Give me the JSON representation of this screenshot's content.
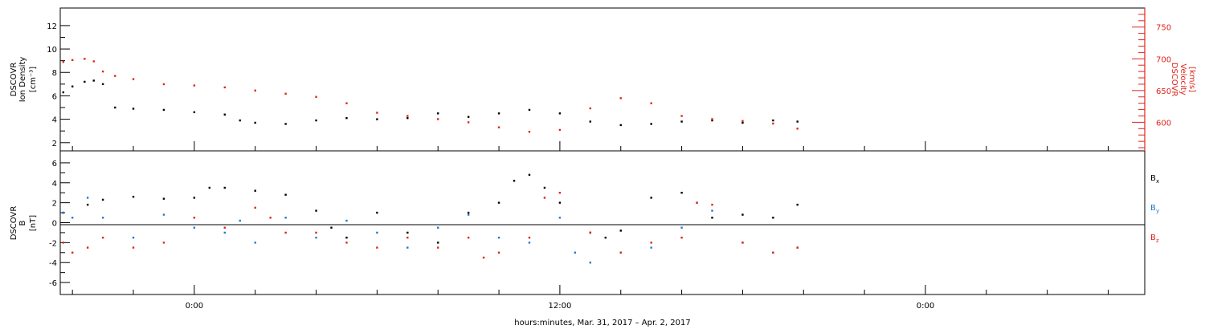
{
  "chart_data": [
    {
      "type": "scatter",
      "panel": "plasma",
      "ylabel_left": [
        "DSCOVR",
        "Ion Density",
        "[cm⁻³]"
      ],
      "ylabel_right": [
        "DSCOVR",
        "Velocity",
        "[km/s]"
      ],
      "ylim_left": [
        1.3,
        13.5
      ],
      "yticks_left": [
        2,
        4,
        6,
        8,
        10,
        12
      ],
      "ylim_right": [
        555,
        780
      ],
      "yticks_right": [
        600,
        650,
        700,
        750
      ],
      "series": [
        {
          "color": "#000000",
          "axis": "left",
          "x": [
            -4.3,
            -4.0,
            -3.6,
            -3.3,
            -3.0,
            -2.6,
            -2.0,
            -1.0,
            0.0,
            1.0,
            1.5,
            2.0,
            3.0,
            4.0,
            5.0,
            6.0,
            7.0,
            8.0,
            9.0,
            10.0,
            11.0,
            12.0,
            13.0,
            14.0,
            15.0,
            16.0,
            17.0,
            18.0,
            19.0,
            19.8
          ],
          "y": [
            6.3,
            6.8,
            7.2,
            7.3,
            7.0,
            5.0,
            4.9,
            4.8,
            4.6,
            4.4,
            3.9,
            3.7,
            3.6,
            3.9,
            4.1,
            4.0,
            4.1,
            4.5,
            4.2,
            4.5,
            4.8,
            4.5,
            3.8,
            3.5,
            3.6,
            3.8,
            3.9,
            3.7,
            3.9,
            3.8
          ]
        },
        {
          "color": "#e0241c",
          "axis": "right",
          "x": [
            -4.3,
            -4.0,
            -3.6,
            -3.3,
            -3.0,
            -2.6,
            -2.0,
            -1.0,
            0.0,
            1.0,
            2.0,
            3.0,
            4.0,
            5.0,
            6.0,
            7.0,
            8.0,
            9.0,
            10.0,
            11.0,
            12.0,
            13.0,
            14.0,
            15.0,
            16.0,
            17.0,
            18.0,
            19.0,
            19.8
          ],
          "y": [
            695,
            698,
            700,
            696,
            680,
            673,
            668,
            660,
            658,
            655,
            650,
            645,
            640,
            630,
            615,
            610,
            605,
            600,
            592,
            585,
            588,
            622,
            638,
            630,
            610,
            605,
            602,
            598,
            590
          ]
        }
      ]
    },
    {
      "type": "scatter",
      "panel": "magnetic",
      "ylabel": [
        "DSCOVR",
        "B",
        "[nT]"
      ],
      "ylim": [
        -7.2,
        7.2
      ],
      "yticks": [
        -6,
        -4,
        -2,
        0,
        2,
        4,
        6
      ],
      "zero_line": true,
      "legend": {
        "placement": "right",
        "entries": [
          {
            "label": "B",
            "sub": "x",
            "color": "#000000"
          },
          {
            "label": "B",
            "sub": "y",
            "color": "#1c7bd6"
          },
          {
            "label": "B",
            "sub": "z",
            "color": "#e0241c"
          }
        ]
      },
      "series": [
        {
          "sub": "x",
          "color": "#000000",
          "x": [
            -4.3,
            -3.5,
            -3.0,
            -2.0,
            -1.0,
            0.0,
            0.5,
            1.0,
            2.0,
            3.0,
            4.0,
            4.5,
            5.0,
            6.0,
            7.0,
            8.0,
            9.0,
            10.0,
            10.5,
            11.0,
            11.5,
            12.0,
            13.0,
            13.5,
            14.0,
            15.0,
            16.0,
            17.0,
            18.0,
            19.0,
            19.8
          ],
          "y": [
            1.0,
            1.8,
            2.3,
            2.6,
            2.4,
            2.5,
            3.5,
            3.5,
            3.2,
            2.8,
            1.2,
            -0.5,
            -1.5,
            1.0,
            -1.0,
            -2.0,
            1.0,
            2.0,
            4.2,
            4.8,
            3.5,
            2.0,
            -1.0,
            -1.5,
            -0.8,
            2.5,
            3.0,
            0.5,
            0.8,
            0.5,
            1.8
          ]
        },
        {
          "sub": "y",
          "color": "#1c7bd6",
          "x": [
            -4.3,
            -4.0,
            -3.5,
            -3.0,
            -2.0,
            -1.0,
            0.0,
            1.0,
            1.5,
            2.0,
            3.0,
            4.0,
            5.0,
            6.0,
            7.0,
            8.0,
            9.0,
            10.0,
            11.0,
            12.0,
            12.5,
            13.0,
            14.0,
            15.0,
            16.0,
            16.5,
            17.0,
            18.0,
            19.0,
            19.8
          ],
          "y": [
            1.0,
            0.5,
            2.5,
            0.5,
            -1.5,
            0.8,
            -0.5,
            -1.0,
            0.2,
            -2.0,
            0.5,
            -1.5,
            0.2,
            -1.0,
            -2.5,
            -0.5,
            0.8,
            -1.5,
            -2.0,
            0.5,
            -3.0,
            -4.0,
            -3.0,
            -2.5,
            -0.5,
            2.0,
            1.2,
            -2.0,
            -3.0,
            -2.5
          ]
        },
        {
          "sub": "z",
          "color": "#e0241c",
          "x": [
            -4.3,
            -4.0,
            -3.5,
            -3.0,
            -2.0,
            -1.0,
            0.0,
            1.0,
            2.0,
            2.5,
            3.0,
            4.0,
            5.0,
            6.0,
            7.0,
            8.0,
            9.0,
            9.5,
            10.0,
            11.0,
            11.5,
            12.0,
            13.0,
            14.0,
            15.0,
            16.0,
            16.5,
            17.0,
            18.0,
            19.0,
            19.8
          ],
          "y": [
            -2.0,
            -3.0,
            -2.5,
            -1.5,
            -2.5,
            -2.0,
            0.5,
            -0.5,
            1.5,
            0.5,
            -1.0,
            -1.0,
            -2.0,
            -2.5,
            -1.5,
            -2.5,
            -1.5,
            -3.5,
            -3.0,
            -1.5,
            2.5,
            3.0,
            -1.0,
            -3.0,
            -2.0,
            -1.5,
            2.0,
            1.8,
            -2.0,
            -3.0,
            -2.5
          ]
        }
      ]
    }
  ],
  "x_axis": {
    "range_hours": [
      -4.4,
      31.2
    ],
    "major_ticks": [
      {
        "x": 0,
        "label": "0:00"
      },
      {
        "x": 12,
        "label": "12:00"
      },
      {
        "x": 24,
        "label": "0:00"
      }
    ],
    "minor_step_hours": 2,
    "xlabel": "hours:minutes, Mar. 31, 2017 – Apr.  2, 2017"
  },
  "colors": {
    "black": "#000000",
    "blue": "#1c7bd6",
    "red": "#e0241c"
  }
}
